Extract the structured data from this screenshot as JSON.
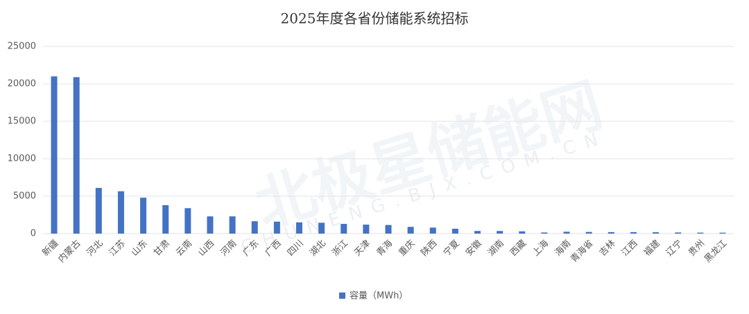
{
  "chart_data": {
    "type": "bar",
    "title": "2025年度各省份储能系统招标",
    "categories": [
      "新疆",
      "内蒙古",
      "河北",
      "江苏",
      "山东",
      "甘肃",
      "云南",
      "山西",
      "河南",
      "广东",
      "广西",
      "四川",
      "湖北",
      "浙江",
      "天津",
      "青海",
      "重庆",
      "陕西",
      "宁夏",
      "安徽",
      "湖南",
      "西藏",
      "上海",
      "海南",
      "青海省",
      "吉林",
      "江西",
      "福建",
      "辽宁",
      "贵州",
      "黑龙江"
    ],
    "series": [
      {
        "name": "容量（MWh）",
        "color": "#4472c4",
        "values": [
          21000,
          20900,
          6100,
          5650,
          4800,
          3800,
          3400,
          2300,
          2300,
          1650,
          1600,
          1500,
          1450,
          1300,
          1200,
          1150,
          900,
          800,
          650,
          350,
          350,
          300,
          150,
          250,
          220,
          200,
          200,
          180,
          150,
          130,
          120
        ]
      }
    ],
    "ylim": [
      0,
      25000
    ],
    "yticks": [
      0,
      5000,
      10000,
      15000,
      20000,
      25000
    ],
    "grid": true,
    "legend": "bottom",
    "watermark": "北极星储能网",
    "watermark_url": "CHUNENG.BJX.COM.CN"
  }
}
